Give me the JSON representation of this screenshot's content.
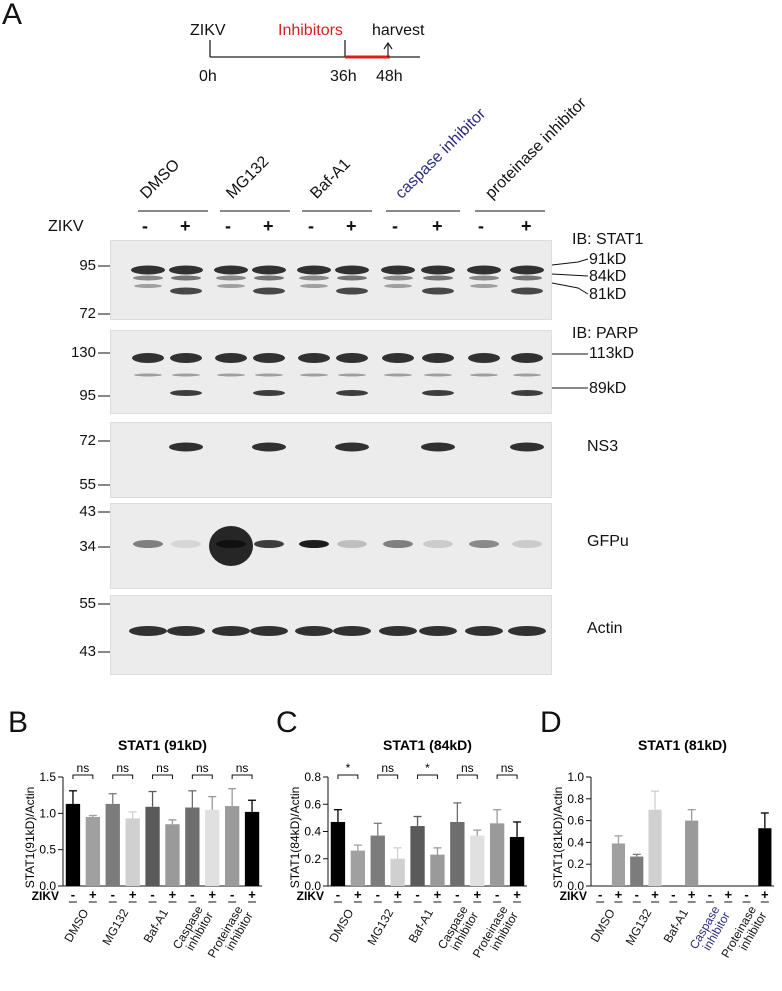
{
  "panelA": {
    "letter": "A",
    "timeline": {
      "zikv": "ZIKV",
      "inhibitors": "Inhibitors",
      "harvest": "harvest",
      "t0": "0h",
      "t36": "36h",
      "t48": "48h",
      "inhibitor_color": "#d62020"
    },
    "groups": [
      {
        "label": "DMSO",
        "color": "#111111"
      },
      {
        "label": "MG132",
        "color": "#111111"
      },
      {
        "label": "Baf-A1",
        "color": "#111111"
      },
      {
        "label": "caspase inhibitor",
        "color": "#2a2a80"
      },
      {
        "label": "proteinase inhibitor",
        "color": "#111111"
      }
    ],
    "zikv_label": "ZIKV",
    "lane_signs": [
      "-",
      "+",
      "-",
      "+",
      "-",
      "+",
      "-",
      "+",
      "-",
      "+"
    ],
    "blots": [
      {
        "name": "STAT1",
        "title": "IB: STAT1",
        "mw": [
          "95",
          "72"
        ],
        "bands": [
          "91kD",
          "84kD",
          "81kD"
        ]
      },
      {
        "name": "PARP",
        "title": "IB: PARP",
        "mw": [
          "130",
          "95"
        ],
        "bands": [
          "113kD",
          "89kD"
        ]
      },
      {
        "name": "NS3",
        "title": "NS3",
        "mw": [
          "72",
          "55"
        ],
        "bands": []
      },
      {
        "name": "GFPu",
        "title": "GFPu",
        "mw": [
          "43",
          "34"
        ],
        "bands": []
      },
      {
        "name": "Actin",
        "title": "Actin",
        "mw": [
          "55",
          "43"
        ],
        "bands": []
      }
    ]
  },
  "chart_data": [
    {
      "panel": "B",
      "type": "bar",
      "title": "STAT1 (91kD)",
      "ylabel": "STAT1(91kD)/Actin",
      "ylim": [
        0,
        1.5
      ],
      "yticks": [
        "0.0",
        "0.5",
        "1.0",
        "1.5"
      ],
      "categories": [
        "DMSO -",
        "DMSO +",
        "MG132 -",
        "MG132 +",
        "Baf-A1 -",
        "Baf-A1 +",
        "Caspase inhibitor -",
        "Caspase inhibitor +",
        "Proteinase inhibitor -",
        "Proteinase inhibitor +"
      ],
      "values": [
        1.13,
        0.95,
        1.13,
        0.93,
        1.09,
        0.85,
        1.08,
        1.05,
        1.1,
        1.02
      ],
      "errors": [
        0.18,
        0.02,
        0.14,
        0.09,
        0.21,
        0.06,
        0.23,
        0.18,
        0.24,
        0.16
      ],
      "sig": [
        "ns",
        "ns",
        "ns",
        "ns",
        "ns"
      ]
    },
    {
      "panel": "C",
      "type": "bar",
      "title": "STAT1 (84kD)",
      "ylabel": "STAT1(84kD)/Actin",
      "ylim": [
        0,
        0.8
      ],
      "yticks": [
        "0.0",
        "0.2",
        "0.4",
        "0.6",
        "0.8"
      ],
      "categories": [
        "DMSO -",
        "DMSO +",
        "MG132 -",
        "MG132 +",
        "Baf-A1 -",
        "Baf-A1 +",
        "Caspase inhibitor -",
        "Caspase inhibitor +",
        "Proteinase inhibitor -",
        "Proteinase inhibitor +"
      ],
      "values": [
        0.47,
        0.26,
        0.37,
        0.2,
        0.44,
        0.23,
        0.47,
        0.37,
        0.46,
        0.36
      ],
      "errors": [
        0.09,
        0.04,
        0.09,
        0.08,
        0.07,
        0.05,
        0.14,
        0.04,
        0.1,
        0.11
      ],
      "sig": [
        "*",
        "ns",
        "*",
        "ns",
        "ns"
      ]
    },
    {
      "panel": "D",
      "type": "bar",
      "title": "STAT1 (81kD)",
      "ylabel": "STAT1(81kD)/Actin",
      "ylim": [
        0,
        1.0
      ],
      "yticks": [
        "0.0",
        "0.2",
        "0.4",
        "0.6",
        "0.8",
        "1.0"
      ],
      "categories": [
        "DMSO -",
        "DMSO +",
        "MG132 -",
        "MG132 +",
        "Baf-A1 -",
        "Baf-A1 +",
        "Caspase inhibitor -",
        "Caspase inhibitor +",
        "Proteinase inhibitor -",
        "Proteinase inhibitor +"
      ],
      "values": [
        0,
        0.39,
        0.27,
        0.7,
        0,
        0.6,
        0,
        0,
        0,
        0.53
      ],
      "errors": [
        0,
        0.07,
        0.02,
        0.17,
        0,
        0.1,
        0,
        0,
        0,
        0.14
      ],
      "sig": []
    }
  ],
  "chart_common": {
    "xgroups": [
      "DMSO",
      "MG132",
      "Baf-A1",
      "Caspase inhibitor",
      "Proteinase inhibitor"
    ],
    "xgroups_colors": [
      "#111111",
      "#111111",
      "#111111",
      "#111111",
      "#111111"
    ],
    "zikv": "ZIKV",
    "minus": "-",
    "plus": "+",
    "bar_colors": [
      "#000000",
      "#a0a0a0",
      "#7c7c7c",
      "#d0d0d0",
      "#5a5a5a",
      "#9a9a9a",
      "#6e6e6e",
      "#e0e0e0",
      "#9a9a9a",
      "#000000"
    ]
  }
}
